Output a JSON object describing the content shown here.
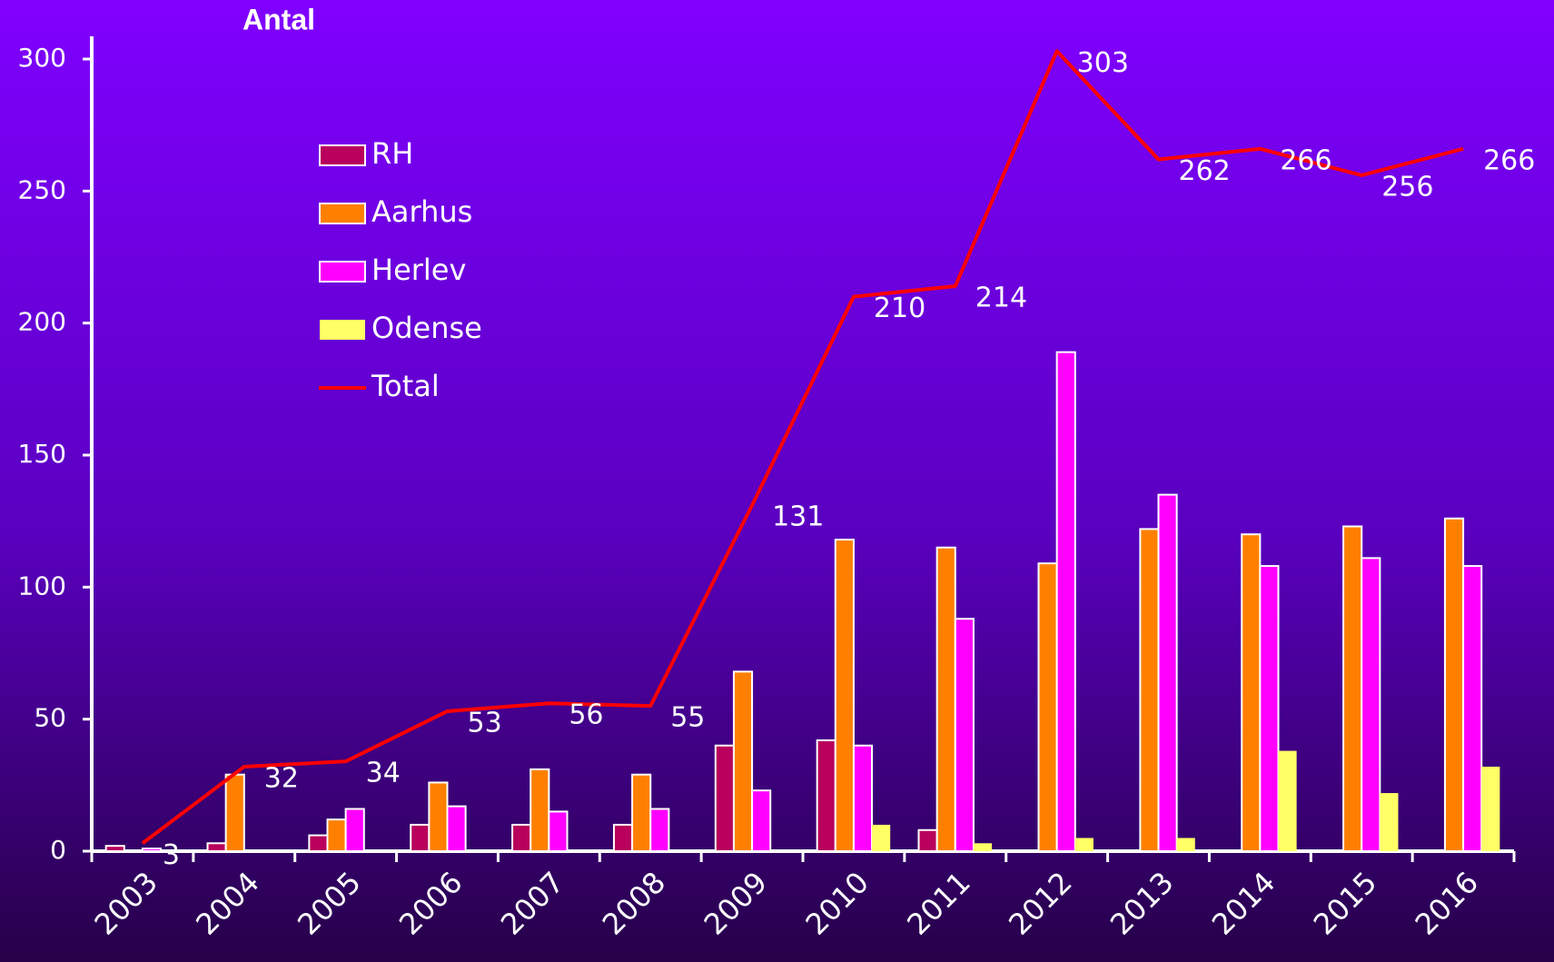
{
  "chart_data": {
    "type": "bar-line",
    "y_label": "Antal",
    "categories": [
      "2003",
      "2004",
      "2005",
      "2006",
      "2007",
      "2008",
      "2009",
      "2010",
      "2011",
      "2012",
      "2013",
      "2014",
      "2015",
      "2016"
    ],
    "series": [
      {
        "name": "RH",
        "color": "#b8005c",
        "type": "bar",
        "values": [
          2,
          3,
          6,
          10,
          10,
          10,
          40,
          42,
          8,
          0,
          0,
          0,
          0,
          0
        ]
      },
      {
        "name": "Aarhus",
        "color": "#ff8000",
        "type": "bar",
        "values": [
          0,
          29,
          12,
          26,
          31,
          29,
          68,
          118,
          115,
          109,
          122,
          120,
          123,
          126
        ]
      },
      {
        "name": "Herlev",
        "color": "#ff00ff",
        "type": "bar",
        "values": [
          1,
          0,
          16,
          17,
          15,
          16,
          23,
          40,
          88,
          189,
          135,
          108,
          111,
          108
        ]
      },
      {
        "name": "Odense",
        "color": "#ffff66",
        "type": "bar",
        "values": [
          0,
          0,
          0,
          0,
          0,
          0,
          0,
          10,
          3,
          5,
          5,
          38,
          22,
          32
        ]
      },
      {
        "name": "Total",
        "color": "#ff0000",
        "type": "line",
        "values": [
          3,
          32,
          34,
          53,
          56,
          55,
          131,
          210,
          214,
          303,
          262,
          266,
          256,
          266
        ]
      }
    ],
    "ylim": [
      0,
      300
    ],
    "yticks": [
      0,
      50,
      100,
      150,
      200,
      250,
      300
    ]
  }
}
